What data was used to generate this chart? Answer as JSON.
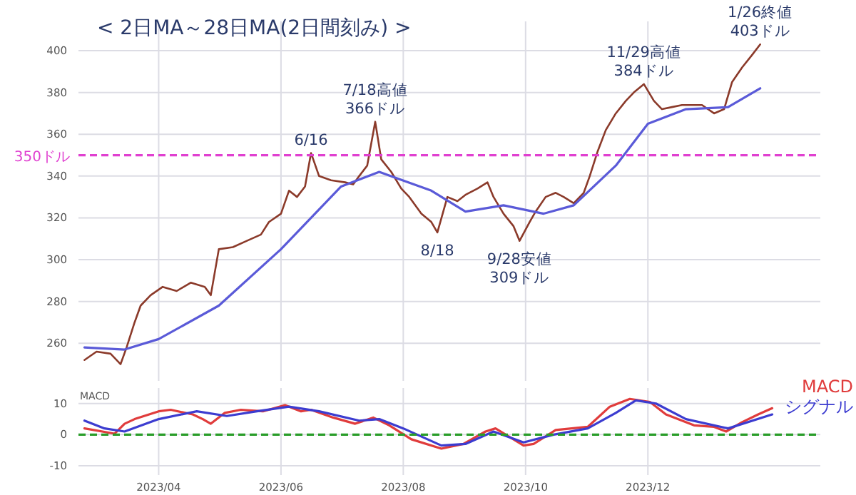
{
  "chart_data": [
    {
      "type": "line",
      "title": "< 2日MA～28日MA(2日間刻み) >",
      "grid": true,
      "tick_labels": "y",
      "xlim": [
        "2023-02-20",
        "2024-02-25"
      ],
      "xticks": [
        {
          "value": "2023-04-01",
          "label": null
        },
        {
          "value": "2023-06-01",
          "label": null
        },
        {
          "value": "2023-08-01",
          "label": null
        },
        {
          "value": "2023-10-01",
          "label": null
        },
        {
          "value": "2023-12-01",
          "label": null
        }
      ],
      "ylim": [
        242,
        414
      ],
      "yticks": [
        260,
        280,
        300,
        320,
        340,
        360,
        380,
        400
      ],
      "series": [
        {
          "color": "#8b3a2a",
          "x": [
            "2023-02-23",
            "2023-03-01",
            "2023-03-08",
            "2023-03-13",
            "2023-03-16",
            "2023-03-20",
            "2023-03-23",
            "2023-03-28",
            "2023-04-03",
            "2023-04-10",
            "2023-04-17",
            "2023-04-24",
            "2023-04-27",
            "2023-05-01",
            "2023-05-08",
            "2023-05-15",
            "2023-05-22",
            "2023-05-26",
            "2023-06-01",
            "2023-06-05",
            "2023-06-09",
            "2023-06-13",
            "2023-06-16",
            "2023-06-20",
            "2023-06-26",
            "2023-07-03",
            "2023-07-07",
            "2023-07-10",
            "2023-07-14",
            "2023-07-18",
            "2023-07-21",
            "2023-07-26",
            "2023-07-31",
            "2023-08-04",
            "2023-08-10",
            "2023-08-15",
            "2023-08-18",
            "2023-08-23",
            "2023-08-28",
            "2023-09-01",
            "2023-09-07",
            "2023-09-12",
            "2023-09-15",
            "2023-09-20",
            "2023-09-25",
            "2023-09-28",
            "2023-10-03",
            "2023-10-06",
            "2023-10-11",
            "2023-10-16",
            "2023-10-20",
            "2023-10-25",
            "2023-10-30",
            "2023-11-02",
            "2023-11-06",
            "2023-11-10",
            "2023-11-15",
            "2023-11-20",
            "2023-11-24",
            "2023-11-29",
            "2023-12-04",
            "2023-12-08",
            "2023-12-13",
            "2023-12-18",
            "2023-12-22",
            "2023-12-28",
            "2024-01-03",
            "2024-01-08",
            "2024-01-12",
            "2024-01-17",
            "2024-01-22",
            "2024-01-26"
          ],
          "values": [
            252,
            256,
            255,
            250,
            258,
            270,
            278,
            283,
            287,
            285,
            289,
            287,
            283,
            305,
            306,
            309,
            312,
            318,
            322,
            333,
            330,
            335,
            351,
            340,
            338,
            337,
            336,
            340,
            345,
            366,
            348,
            342,
            334,
            330,
            322,
            318,
            313,
            330,
            328,
            331,
            334,
            337,
            330,
            322,
            316,
            309,
            318,
            323,
            330,
            332,
            330,
            327,
            332,
            340,
            352,
            362,
            370,
            376,
            380,
            384,
            376,
            372,
            373,
            374,
            374,
            374,
            370,
            372,
            385,
            392,
            398,
            403
          ]
        },
        {
          "color": "#5a5ad8",
          "x": [
            "2023-02-23",
            "2023-03-15",
            "2023-04-01",
            "2023-05-01",
            "2023-06-01",
            "2023-07-01",
            "2023-07-20",
            "2023-08-15",
            "2023-09-01",
            "2023-09-20",
            "2023-10-10",
            "2023-10-25",
            "2023-11-15",
            "2023-12-01",
            "2023-12-20",
            "2024-01-10",
            "2024-01-26"
          ],
          "values": [
            258,
            257,
            262,
            278,
            305,
            335,
            342,
            333,
            323,
            326,
            322,
            326,
            345,
            365,
            372,
            373,
            382
          ]
        }
      ],
      "ref_lines": [
        {
          "axis": "y",
          "value": 350,
          "label": "350ドル",
          "color": "#e040d0",
          "line_style": "dashed"
        }
      ],
      "annotations": [
        {
          "text": "6/16",
          "x": "2023-06-16",
          "y": 351
        },
        {
          "text": "7/18高値 366ドル",
          "x": "2023-07-18",
          "y": 366
        },
        {
          "text": "8/18",
          "x": "2023-08-18",
          "y": 313
        },
        {
          "text": "9/28安値 309ドル",
          "x": "2023-09-28",
          "y": 309
        },
        {
          "text": "11/29高値 384ドル",
          "x": "2023-11-29",
          "y": 384
        },
        {
          "text": "1/26終値 403ドル",
          "x": "2024-01-26",
          "y": 403
        }
      ]
    },
    {
      "type": "line",
      "ylabel": "MACD",
      "grid": true,
      "legend": "right",
      "xlim": [
        "2023-02-20",
        "2024-02-25"
      ],
      "xticks": [
        {
          "value": "2023-04-01",
          "label": "2023/04"
        },
        {
          "value": "2023-06-01",
          "label": "2023/06"
        },
        {
          "value": "2023-08-01",
          "label": "2023/08"
        },
        {
          "value": "2023-10-01",
          "label": "2023/10"
        },
        {
          "value": "2023-12-01",
          "label": "2023/12"
        }
      ],
      "ylim": [
        -13,
        15
      ],
      "yticks": [
        -10,
        0,
        10
      ],
      "series": [
        {
          "name": "MACD",
          "color": "#e03c3c",
          "x": [
            "2023-02-23",
            "2023-03-10",
            "2023-03-15",
            "2023-03-20",
            "2023-04-01",
            "2023-04-07",
            "2023-04-18",
            "2023-04-23",
            "2023-04-27",
            "2023-05-04",
            "2023-05-12",
            "2023-05-23",
            "2023-06-03",
            "2023-06-11",
            "2023-06-16",
            "2023-06-27",
            "2023-07-08",
            "2023-07-17",
            "2023-07-25",
            "2023-08-05",
            "2023-08-20",
            "2023-08-31",
            "2023-09-11",
            "2023-09-16",
            "2023-09-30",
            "2023-10-05",
            "2023-10-16",
            "2023-10-24",
            "2023-11-01",
            "2023-11-12",
            "2023-11-22",
            "2023-12-02",
            "2023-12-10",
            "2023-12-24",
            "2024-01-03",
            "2024-01-09",
            "2024-01-17",
            "2024-01-25",
            "2024-02-01"
          ],
          "values": [
            2,
            0.3,
            3.5,
            5,
            7.5,
            8,
            6.5,
            5,
            3.5,
            7,
            8,
            7.5,
            9.5,
            7.5,
            8,
            5.5,
            3.5,
            5.5,
            3,
            -1.5,
            -4.5,
            -3,
            1,
            2,
            -3.5,
            -3,
            1.5,
            2,
            2.5,
            9,
            11.5,
            10.5,
            6.5,
            3,
            2.5,
            1,
            4,
            6.5,
            8.5
          ]
        },
        {
          "name": "シグナル",
          "color": "#3c3cd0",
          "x": [
            "2023-02-23",
            "2023-03-05",
            "2023-03-15",
            "2023-04-01",
            "2023-04-20",
            "2023-05-05",
            "2023-05-20",
            "2023-06-05",
            "2023-06-20",
            "2023-07-10",
            "2023-07-20",
            "2023-08-01",
            "2023-08-20",
            "2023-09-01",
            "2023-09-15",
            "2023-09-30",
            "2023-10-15",
            "2023-11-01",
            "2023-11-15",
            "2023-11-25",
            "2023-12-05",
            "2023-12-20",
            "2024-01-10",
            "2024-02-01"
          ],
          "values": [
            4.5,
            2,
            1,
            5,
            7.5,
            6,
            7.5,
            9,
            7.5,
            4.5,
            5,
            2,
            -3.5,
            -3,
            1,
            -2.5,
            0,
            2,
            7,
            11,
            10,
            5,
            2,
            6.5
          ]
        }
      ],
      "ref_lines": [
        {
          "axis": "y",
          "value": 0,
          "color": "#2a9d2a",
          "line_style": "dashed"
        }
      ]
    }
  ]
}
